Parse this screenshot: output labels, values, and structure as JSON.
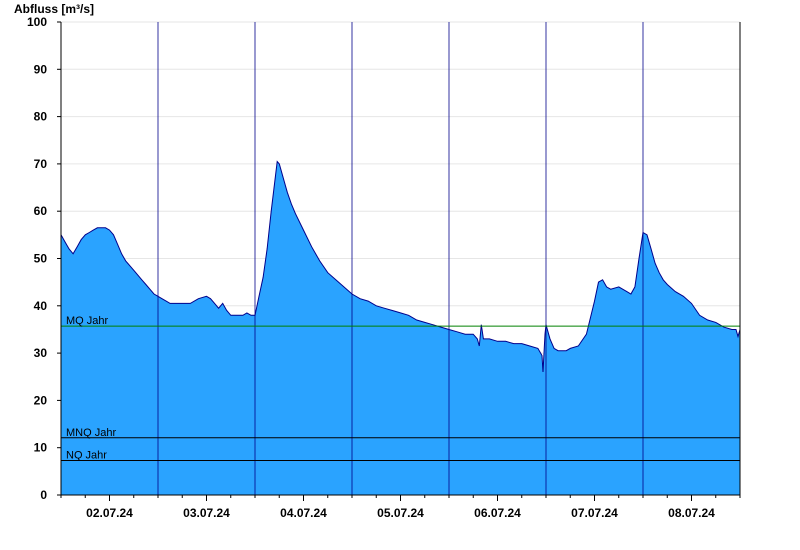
{
  "chart_data": {
    "type": "area",
    "ylabel": "Abfluss [m³/s]",
    "xlabel": "",
    "ylim": [
      0,
      100
    ],
    "yticks": [
      0,
      10,
      20,
      30,
      40,
      50,
      60,
      70,
      80,
      90,
      100
    ],
    "xlim": [
      "2024-07-01 12:00",
      "2024-07-08 12:00"
    ],
    "xticks": [
      {
        "label": "02.07.24",
        "at": "2024-07-02 00:00"
      },
      {
        "label": "03.07.24",
        "at": "2024-07-03 00:00"
      },
      {
        "label": "04.07.24",
        "at": "2024-07-04 00:00"
      },
      {
        "label": "05.07.24",
        "at": "2024-07-05 00:00"
      },
      {
        "label": "06.07.24",
        "at": "2024-07-06 00:00"
      },
      {
        "label": "07.07.24",
        "at": "2024-07-07 00:00"
      },
      {
        "label": "08.07.24",
        "at": "2024-07-08 00:00"
      }
    ],
    "day_boundaries": [
      "2024-07-02 12:00",
      "2024-07-03 12:00",
      "2024-07-04 12:00",
      "2024-07-05 12:00",
      "2024-07-06 12:00",
      "2024-07-07 12:00"
    ],
    "grid": true,
    "series": [
      {
        "color": "#2aa3ff",
        "edge_color": "#00008b",
        "points": [
          [
            "2024-07-01 12:00",
            55.0
          ],
          [
            "2024-07-01 13:00",
            53.5
          ],
          [
            "2024-07-01 14:00",
            52.0
          ],
          [
            "2024-07-01 15:00",
            51.0
          ],
          [
            "2024-07-01 16:00",
            52.5
          ],
          [
            "2024-07-01 17:00",
            54.0
          ],
          [
            "2024-07-01 18:00",
            55.0
          ],
          [
            "2024-07-01 19:00",
            55.5
          ],
          [
            "2024-07-01 20:00",
            56.0
          ],
          [
            "2024-07-01 21:00",
            56.5
          ],
          [
            "2024-07-01 23:00",
            56.5
          ],
          [
            "2024-07-02 00:00",
            56.0
          ],
          [
            "2024-07-02 01:00",
            55.0
          ],
          [
            "2024-07-02 02:00",
            53.0
          ],
          [
            "2024-07-02 03:00",
            51.0
          ],
          [
            "2024-07-02 04:00",
            49.5
          ],
          [
            "2024-07-02 05:00",
            48.5
          ],
          [
            "2024-07-02 06:00",
            47.5
          ],
          [
            "2024-07-02 07:00",
            46.5
          ],
          [
            "2024-07-02 08:00",
            45.5
          ],
          [
            "2024-07-02 09:00",
            44.5
          ],
          [
            "2024-07-02 10:00",
            43.5
          ],
          [
            "2024-07-02 11:00",
            42.5
          ],
          [
            "2024-07-02 12:00",
            42.0
          ],
          [
            "2024-07-02 13:00",
            41.5
          ],
          [
            "2024-07-02 14:00",
            41.0
          ],
          [
            "2024-07-02 15:00",
            40.5
          ],
          [
            "2024-07-02 20:00",
            40.5
          ],
          [
            "2024-07-02 22:00",
            41.5
          ],
          [
            "2024-07-03 00:00",
            42.0
          ],
          [
            "2024-07-03 01:00",
            41.5
          ],
          [
            "2024-07-03 02:00",
            40.5
          ],
          [
            "2024-07-03 03:00",
            39.5
          ],
          [
            "2024-07-03 04:00",
            40.5
          ],
          [
            "2024-07-03 05:00",
            39.0
          ],
          [
            "2024-07-03 06:00",
            38.0
          ],
          [
            "2024-07-03 09:00",
            38.0
          ],
          [
            "2024-07-03 10:00",
            38.5
          ],
          [
            "2024-07-03 11:00",
            38.0
          ],
          [
            "2024-07-03 12:00",
            38.0
          ],
          [
            "2024-07-03 13:00",
            42.0
          ],
          [
            "2024-07-03 14:00",
            46.0
          ],
          [
            "2024-07-03 15:00",
            52.0
          ],
          [
            "2024-07-03 16:00",
            60.0
          ],
          [
            "2024-07-03 17:00",
            67.0
          ],
          [
            "2024-07-03 17:30",
            70.5
          ],
          [
            "2024-07-03 18:00",
            70.0
          ],
          [
            "2024-07-03 19:00",
            67.0
          ],
          [
            "2024-07-03 20:00",
            64.0
          ],
          [
            "2024-07-03 21:00",
            61.5
          ],
          [
            "2024-07-03 22:00",
            59.5
          ],
          [
            "2024-07-04 00:00",
            56.0
          ],
          [
            "2024-07-04 02:00",
            52.5
          ],
          [
            "2024-07-04 04:00",
            49.5
          ],
          [
            "2024-07-04 06:00",
            47.0
          ],
          [
            "2024-07-04 08:00",
            45.5
          ],
          [
            "2024-07-04 10:00",
            44.0
          ],
          [
            "2024-07-04 12:00",
            42.5
          ],
          [
            "2024-07-04 14:00",
            41.5
          ],
          [
            "2024-07-04 16:00",
            41.0
          ],
          [
            "2024-07-04 18:00",
            40.0
          ],
          [
            "2024-07-04 20:00",
            39.5
          ],
          [
            "2024-07-04 22:00",
            39.0
          ],
          [
            "2024-07-05 00:00",
            38.5
          ],
          [
            "2024-07-05 02:00",
            38.0
          ],
          [
            "2024-07-05 04:00",
            37.0
          ],
          [
            "2024-07-05 06:00",
            36.5
          ],
          [
            "2024-07-05 08:00",
            36.0
          ],
          [
            "2024-07-05 10:00",
            35.5
          ],
          [
            "2024-07-05 12:00",
            35.0
          ],
          [
            "2024-07-05 14:00",
            34.5
          ],
          [
            "2024-07-05 16:00",
            34.0
          ],
          [
            "2024-07-05 18:00",
            34.0
          ],
          [
            "2024-07-05 19:00",
            33.0
          ],
          [
            "2024-07-05 19:30",
            31.5
          ],
          [
            "2024-07-05 20:00",
            36.0
          ],
          [
            "2024-07-05 20:30",
            33.0
          ],
          [
            "2024-07-05 22:00",
            33.0
          ],
          [
            "2024-07-06 00:00",
            32.5
          ],
          [
            "2024-07-06 02:00",
            32.5
          ],
          [
            "2024-07-06 04:00",
            32.0
          ],
          [
            "2024-07-06 06:00",
            32.0
          ],
          [
            "2024-07-06 08:00",
            31.5
          ],
          [
            "2024-07-06 10:00",
            31.0
          ],
          [
            "2024-07-06 11:00",
            29.5
          ],
          [
            "2024-07-06 11:15",
            26.0
          ],
          [
            "2024-07-06 11:45",
            34.0
          ],
          [
            "2024-07-06 12:00",
            36.0
          ],
          [
            "2024-07-06 13:00",
            33.0
          ],
          [
            "2024-07-06 14:00",
            31.0
          ],
          [
            "2024-07-06 15:00",
            30.5
          ],
          [
            "2024-07-06 17:00",
            30.5
          ],
          [
            "2024-07-06 18:00",
            31.0
          ],
          [
            "2024-07-06 20:00",
            31.5
          ],
          [
            "2024-07-06 22:00",
            34.0
          ],
          [
            "2024-07-07 00:00",
            41.0
          ],
          [
            "2024-07-07 01:00",
            45.0
          ],
          [
            "2024-07-07 02:00",
            45.5
          ],
          [
            "2024-07-07 03:00",
            44.0
          ],
          [
            "2024-07-07 04:00",
            43.5
          ],
          [
            "2024-07-07 06:00",
            44.0
          ],
          [
            "2024-07-07 08:00",
            43.0
          ],
          [
            "2024-07-07 09:00",
            42.5
          ],
          [
            "2024-07-07 10:00",
            44.0
          ],
          [
            "2024-07-07 11:00",
            50.0
          ],
          [
            "2024-07-07 12:00",
            55.5
          ],
          [
            "2024-07-07 13:00",
            55.0
          ],
          [
            "2024-07-07 14:00",
            52.0
          ],
          [
            "2024-07-07 15:00",
            49.0
          ],
          [
            "2024-07-07 16:00",
            47.0
          ],
          [
            "2024-07-07 17:00",
            45.5
          ],
          [
            "2024-07-07 18:00",
            44.5
          ],
          [
            "2024-07-07 20:00",
            43.0
          ],
          [
            "2024-07-07 22:00",
            42.0
          ],
          [
            "2024-07-08 00:00",
            40.5
          ],
          [
            "2024-07-08 02:00",
            38.0
          ],
          [
            "2024-07-08 04:00",
            37.0
          ],
          [
            "2024-07-08 06:00",
            36.5
          ],
          [
            "2024-07-08 08:00",
            35.5
          ],
          [
            "2024-07-08 10:00",
            35.0
          ],
          [
            "2024-07-08 11:00",
            35.0
          ],
          [
            "2024-07-08 11:30",
            33.5
          ],
          [
            "2024-07-08 12:00",
            35.0
          ]
        ]
      }
    ],
    "reference_lines": [
      {
        "label": "MQ Jahr",
        "value": 35.7,
        "color": "#008000"
      },
      {
        "label": "MNQ Jahr",
        "value": 12.1,
        "color": "#000000"
      },
      {
        "label": "NQ Jahr",
        "value": 7.3,
        "color": "#000000"
      }
    ]
  }
}
